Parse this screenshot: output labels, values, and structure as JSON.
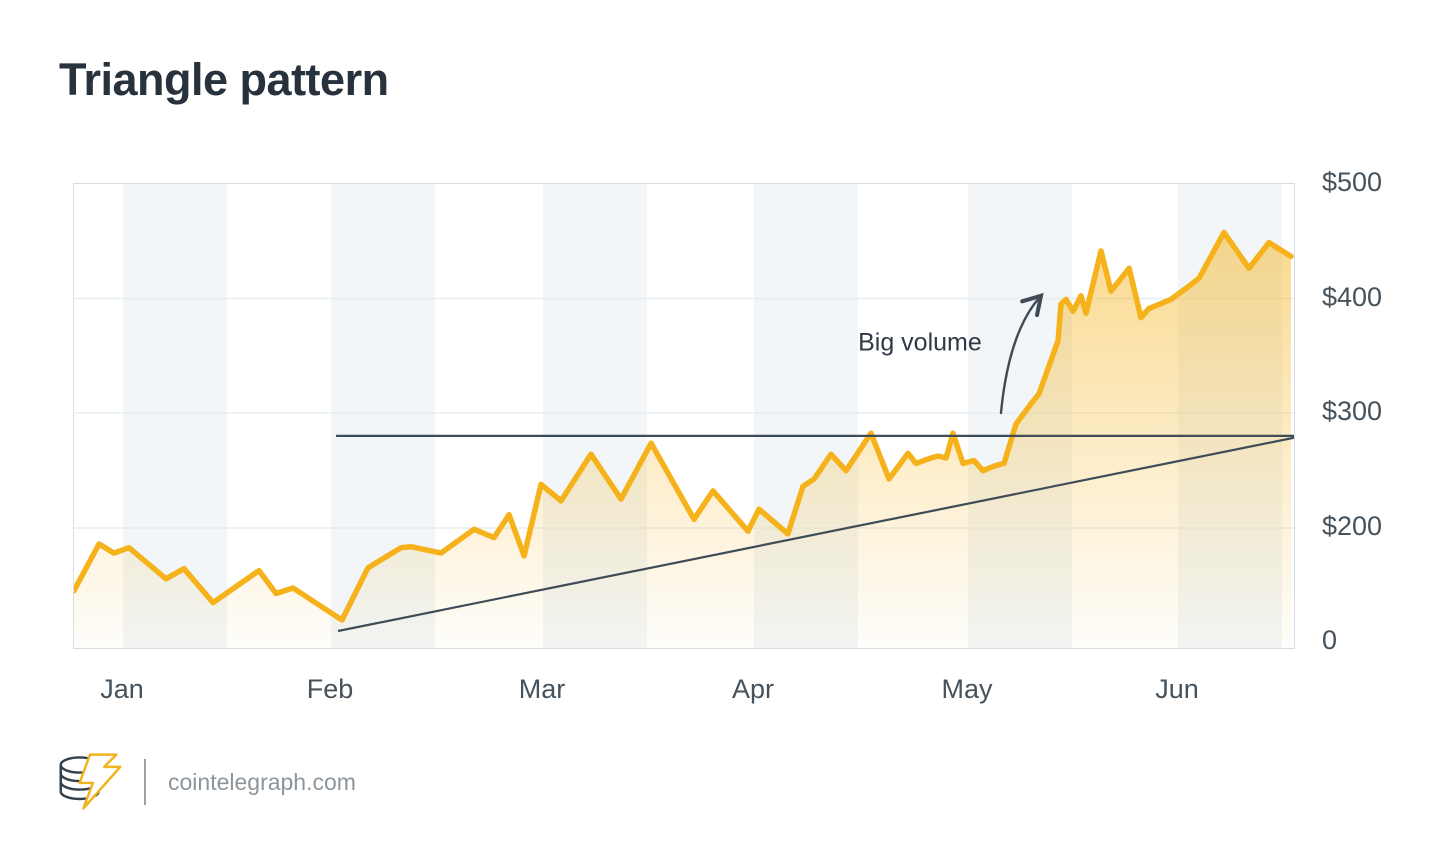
{
  "title": "Triangle pattern",
  "source": {
    "site": "cointelegraph.com"
  },
  "colors": {
    "accent": "#f5b21b",
    "ink": "#3f4c58",
    "band": "#f2f6f8",
    "grid": "#e6edf1",
    "border": "#d5dee4",
    "title_text": "#27323d",
    "axis_text": "#46525c",
    "muted_text": "#8d959b"
  },
  "chart_data": {
    "type": "area",
    "title": "Triangle pattern",
    "ylim": [
      0,
      500
    ],
    "grid": true,
    "legend": "none",
    "y_axis": {
      "side": "right",
      "labels": [
        "$500",
        "$400",
        "$300",
        "$200",
        "0"
      ],
      "positions": [
        0,
        0.2468,
        0.4935,
        0.7414,
        0.9871
      ]
    },
    "x_axis": {
      "labels": [
        "Jan",
        "Feb",
        "Mar",
        "Apr",
        "May",
        "Jun"
      ],
      "positions": [
        0.0402,
        0.2107,
        0.3844,
        0.5574,
        0.7328,
        0.9049
      ]
    },
    "series": [
      {
        "name": "price",
        "points": [
          [
            0.0,
            56
          ],
          [
            0.0205,
            107
          ],
          [
            0.0328,
            97
          ],
          [
            0.0451,
            103
          ],
          [
            0.0754,
            69
          ],
          [
            0.0902,
            80
          ],
          [
            0.1139,
            43
          ],
          [
            0.1516,
            78
          ],
          [
            0.1656,
            53
          ],
          [
            0.1795,
            59
          ],
          [
            0.2197,
            24
          ],
          [
            0.241,
            81
          ],
          [
            0.268,
            103
          ],
          [
            0.2762,
            104
          ],
          [
            0.3008,
            97
          ],
          [
            0.3279,
            123
          ],
          [
            0.3443,
            114
          ],
          [
            0.3566,
            139
          ],
          [
            0.3689,
            94
          ],
          [
            0.3828,
            172
          ],
          [
            0.3992,
            154
          ],
          [
            0.4238,
            205
          ],
          [
            0.4484,
            156
          ],
          [
            0.473,
            217
          ],
          [
            0.5082,
            134
          ],
          [
            0.5238,
            165
          ],
          [
            0.5525,
            121
          ],
          [
            0.5615,
            145
          ],
          [
            0.5852,
            118
          ],
          [
            0.5975,
            170
          ],
          [
            0.6066,
            178
          ],
          [
            0.6205,
            205
          ],
          [
            0.6328,
            187
          ],
          [
            0.6533,
            228
          ],
          [
            0.668,
            178
          ],
          [
            0.6836,
            206
          ],
          [
            0.6902,
            195
          ],
          [
            0.7025,
            201
          ],
          [
            0.7082,
            203
          ],
          [
            0.7148,
            201
          ],
          [
            0.7205,
            228
          ],
          [
            0.7287,
            195
          ],
          [
            0.7377,
            198
          ],
          [
            0.7451,
            187
          ],
          [
            0.7541,
            192
          ],
          [
            0.7623,
            195
          ],
          [
            0.7721,
            238
          ],
          [
            0.7844,
            260
          ],
          [
            0.791,
            271
          ],
          [
            0.8066,
            329
          ],
          [
            0.809,
            369
          ],
          [
            0.8131,
            374
          ],
          [
            0.8189,
            361
          ],
          [
            0.8254,
            378
          ],
          [
            0.8295,
            359
          ],
          [
            0.8418,
            427
          ],
          [
            0.85,
            383
          ],
          [
            0.8648,
            408
          ],
          [
            0.8746,
            354
          ],
          [
            0.8811,
            364
          ],
          [
            0.8992,
            374
          ],
          [
            0.9115,
            386
          ],
          [
            0.9221,
            397
          ],
          [
            0.9426,
            447
          ],
          [
            0.9631,
            408
          ],
          [
            0.9795,
            436
          ],
          [
            0.9975,
            421
          ]
        ]
      }
    ],
    "trendlines": [
      {
        "name": "resistance",
        "x1": 0.2148,
        "price1": 225,
        "x2": 1.0,
        "price2": 225
      },
      {
        "name": "support",
        "x1": 0.2164,
        "price1": 12,
        "x2": 1.0,
        "price2": 223
      }
    ],
    "annotation": {
      "text": "Big volume",
      "x": 0.6934,
      "price": 326,
      "arrow": {
        "from": {
          "x": 0.7598,
          "price": 250
        },
        "ctrl": {
          "x": 0.7664,
          "price": 340
        },
        "to": {
          "x": 0.7926,
          "price": 378
        }
      }
    }
  }
}
